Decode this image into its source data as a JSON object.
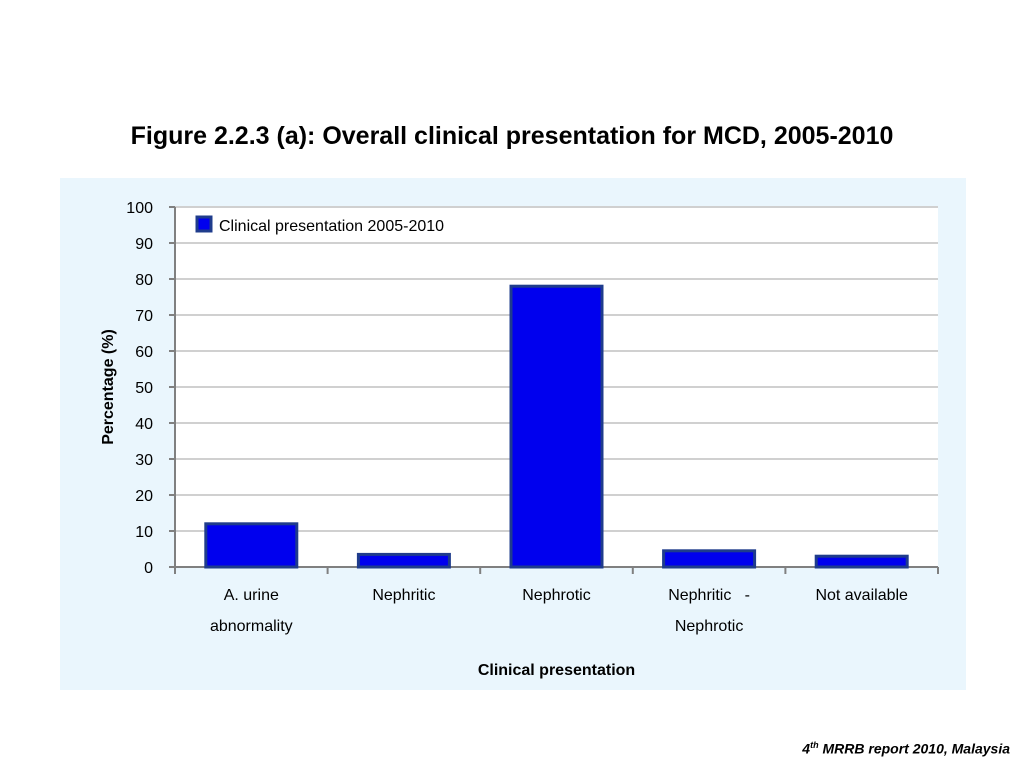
{
  "page": {
    "title": "Figure 2.2.3 (a): Overall clinical presentation for MCD, 2005-2010",
    "footer": {
      "superscript_number": "4",
      "superscript": "th",
      "text": " MRRB report 2010, Malaysia"
    }
  },
  "chart_data": {
    "type": "bar",
    "title": "Figure 2.2.3 (a): Overall clinical presentation for MCD, 2005-2010",
    "categories": [
      "A. urine abnormality",
      "Nephritic",
      "Nephrotic",
      "Nephritic - Nephrotic",
      "Not available"
    ],
    "category_lines": [
      [
        "A. urine",
        "abnormality"
      ],
      [
        "Nephritic"
      ],
      [
        "Nephrotic"
      ],
      [
        "Nephritic   -",
        "Nephrotic"
      ],
      [
        "Not available"
      ]
    ],
    "series": [
      {
        "name": "Clinical presentation 2005-2010",
        "values": [
          12,
          3.5,
          78,
          4.5,
          3
        ]
      }
    ],
    "xlabel": "Clinical presentation",
    "ylabel": "Percentage (%)",
    "ylim": [
      0,
      100
    ],
    "yticks": [
      0,
      10,
      20,
      30,
      40,
      50,
      60,
      70,
      80,
      90,
      100
    ],
    "grid": true,
    "legend_position": "top-left",
    "colors": {
      "bar_fill": "#0000ee",
      "bar_stroke": "#1f3c8c",
      "grid": "#d0d0d0",
      "axis": "#808080",
      "background": "#eaf6fd",
      "plot_background": "#ffffff"
    }
  }
}
